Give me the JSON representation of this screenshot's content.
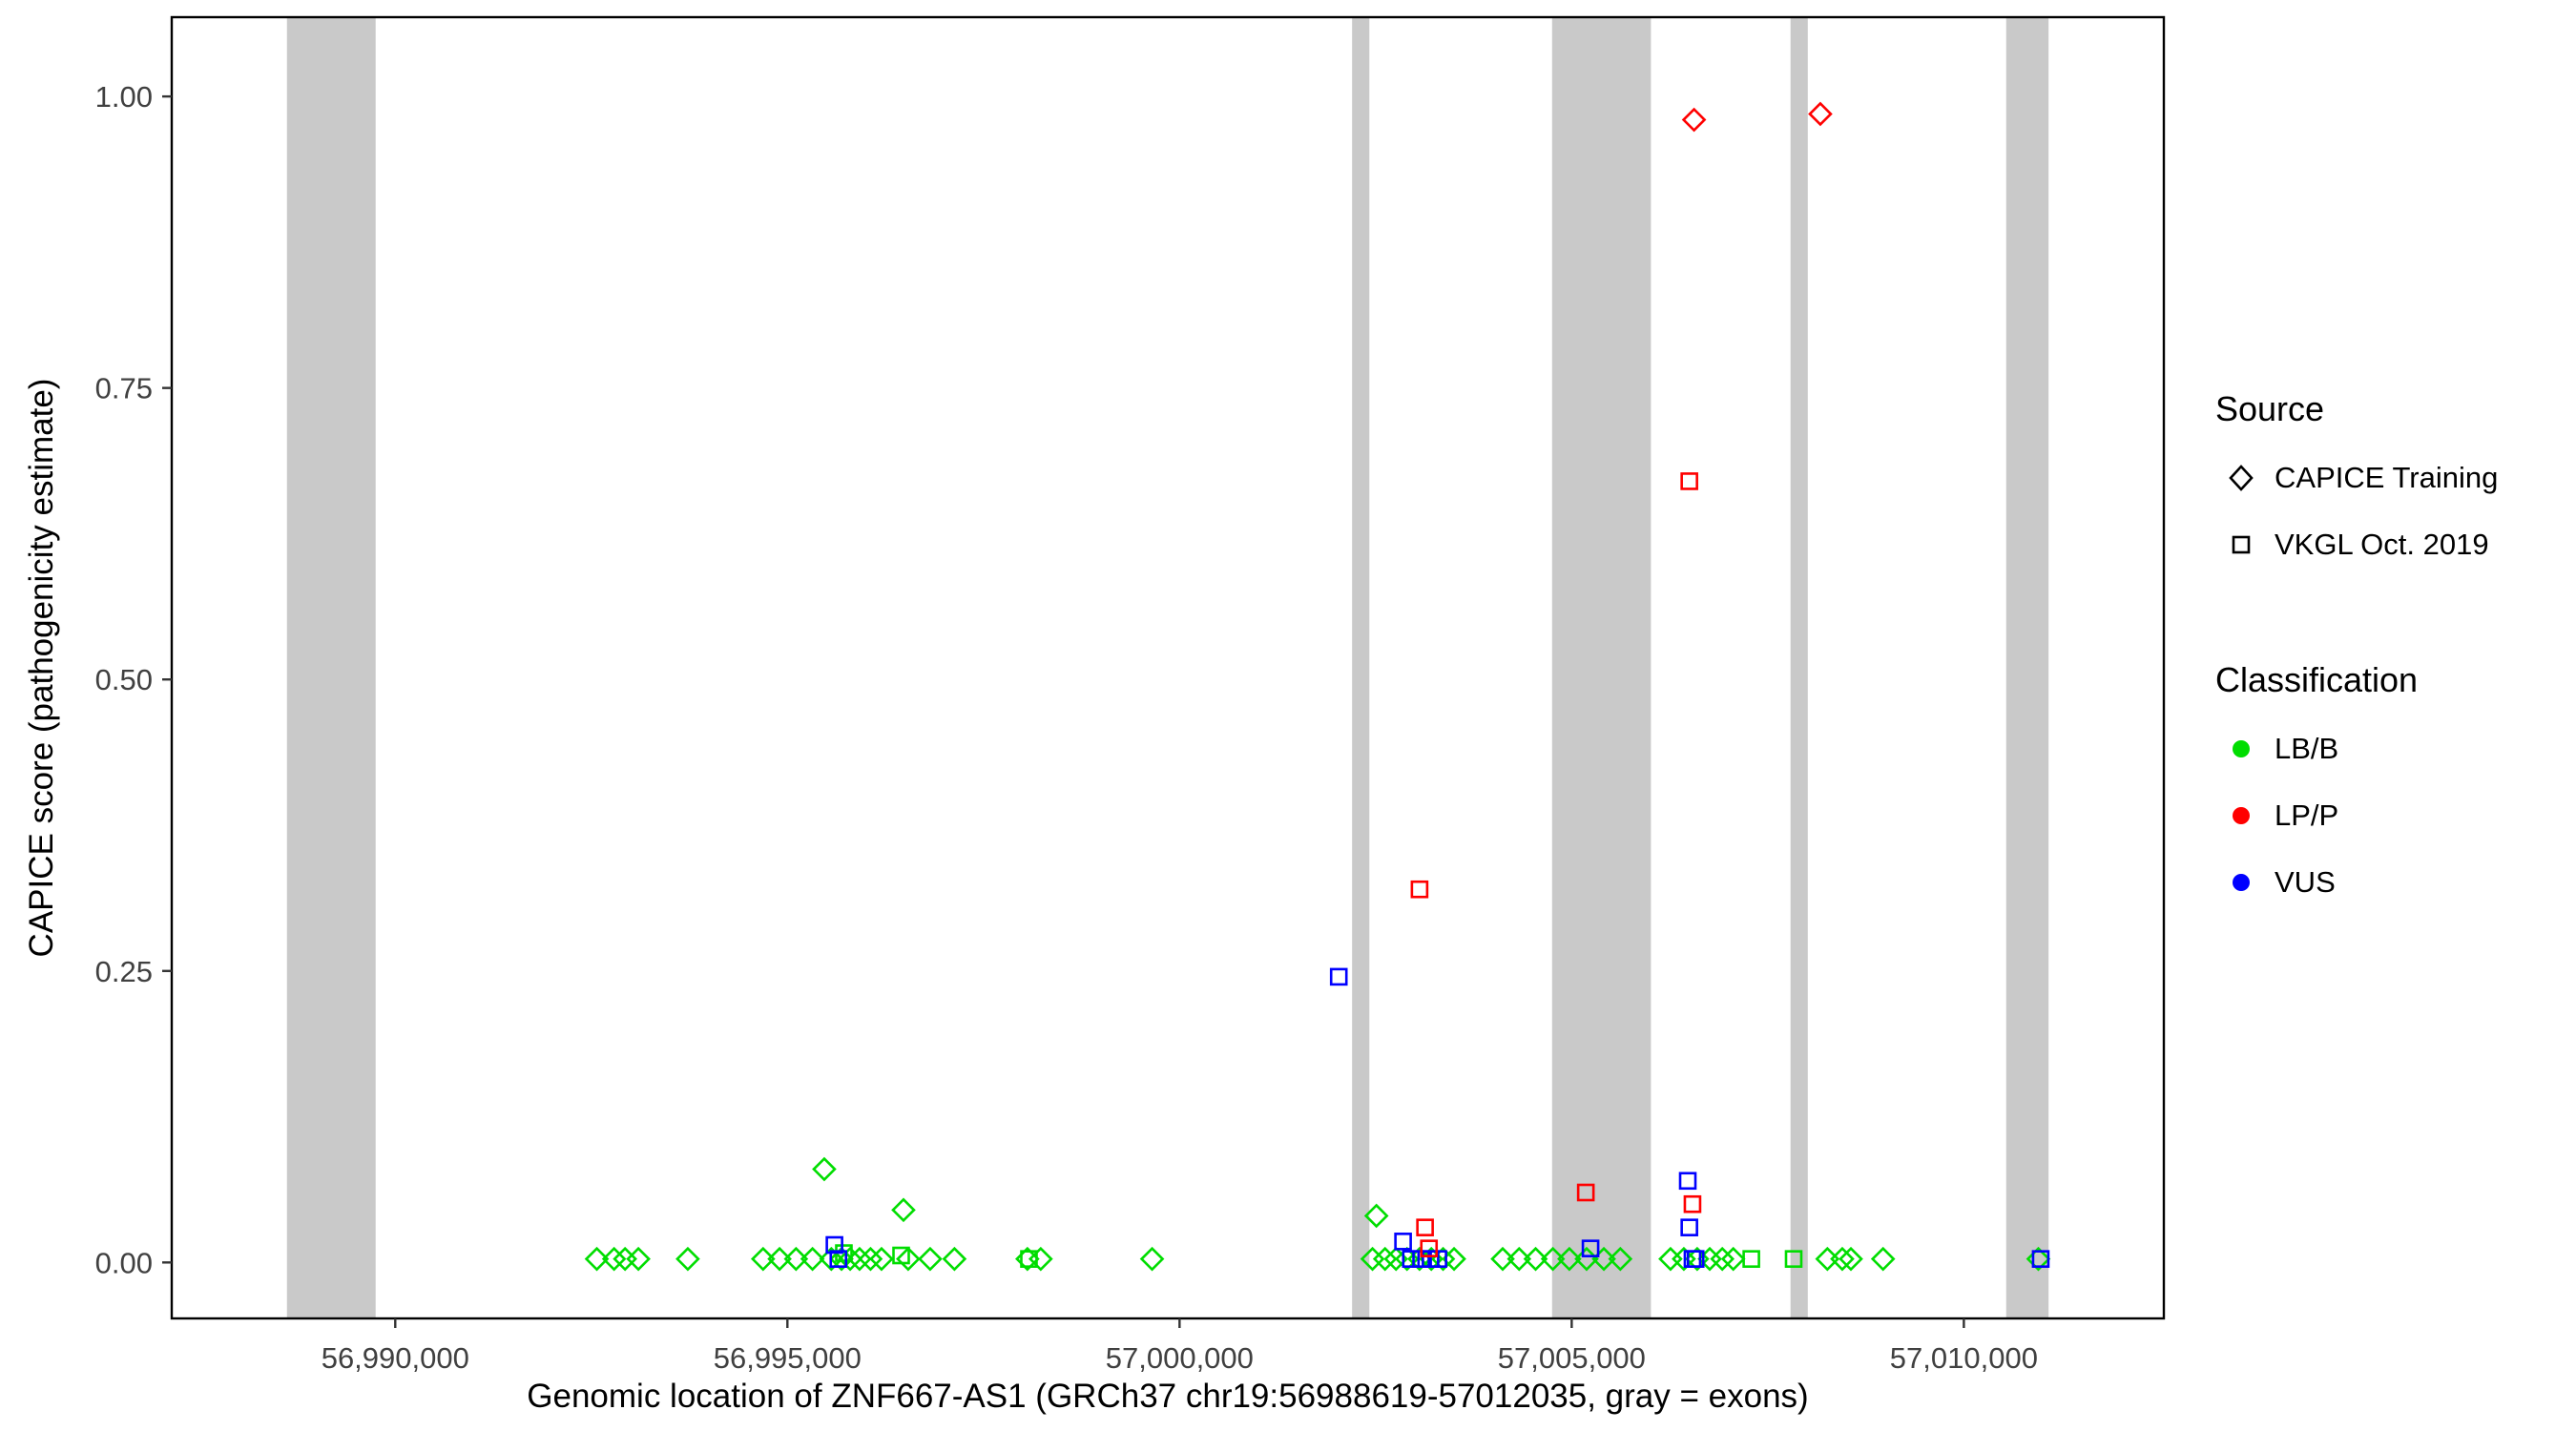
{
  "chart_data": {
    "type": "scatter",
    "title": "",
    "xlabel": "Genomic location of ZNF667-AS1 (GRCh37 chr19:56988619-57012035, gray = exons)",
    "ylabel": "CAPICE score (pathogenicity estimate)",
    "x_domain": [
      56987150,
      57012550
    ],
    "y_domain": [
      -0.048,
      1.068
    ],
    "grid": "off",
    "legend_position": "right",
    "x_ticks": [
      {
        "value": 56990000,
        "label": "56,990,000"
      },
      {
        "value": 56995000,
        "label": "56,995,000"
      },
      {
        "value": 57000000,
        "label": "57,000,000"
      },
      {
        "value": 57005000,
        "label": "57,005,000"
      },
      {
        "value": 57010000,
        "label": "57,010,000"
      }
    ],
    "y_ticks": [
      {
        "value": 0.0,
        "label": "0.00"
      },
      {
        "value": 0.25,
        "label": "0.25"
      },
      {
        "value": 0.5,
        "label": "0.50"
      },
      {
        "value": 0.75,
        "label": "0.75"
      },
      {
        "value": 1.0,
        "label": "1.00"
      }
    ],
    "exon_color": "#C9C9C9",
    "exons": [
      {
        "start": 56988619,
        "end": 56989750
      },
      {
        "start": 57002200,
        "end": 57002420
      },
      {
        "start": 57004750,
        "end": 57006010
      },
      {
        "start": 57007790,
        "end": 57008010
      },
      {
        "start": 57010540,
        "end": 57011080
      }
    ],
    "class_colors": {
      "LB/B": "#00DD00",
      "LP/P": "#FF0000",
      "VUS": "#0000FF"
    },
    "source_shapes": {
      "CAPICE": "diamond",
      "VKGL": "square"
    },
    "source_labels": {
      "CAPICE": "CAPICE Training",
      "VKGL": "VKGL Oct. 2019"
    },
    "points": [
      {
        "x": 56992570,
        "y": 0.003,
        "src": "CAPICE",
        "cls": "LB/B"
      },
      {
        "x": 56992790,
        "y": 0.003,
        "src": "CAPICE",
        "cls": "LB/B"
      },
      {
        "x": 56992930,
        "y": 0.003,
        "src": "CAPICE",
        "cls": "LB/B"
      },
      {
        "x": 56993100,
        "y": 0.003,
        "src": "CAPICE",
        "cls": "LB/B"
      },
      {
        "x": 56993730,
        "y": 0.003,
        "src": "CAPICE",
        "cls": "LB/B"
      },
      {
        "x": 56994690,
        "y": 0.003,
        "src": "CAPICE",
        "cls": "LB/B"
      },
      {
        "x": 56994900,
        "y": 0.003,
        "src": "CAPICE",
        "cls": "LB/B"
      },
      {
        "x": 56995110,
        "y": 0.003,
        "src": "CAPICE",
        "cls": "LB/B"
      },
      {
        "x": 56995320,
        "y": 0.003,
        "src": "CAPICE",
        "cls": "LB/B"
      },
      {
        "x": 56995470,
        "y": 0.08,
        "src": "CAPICE",
        "cls": "LB/B"
      },
      {
        "x": 56995560,
        "y": 0.003,
        "src": "CAPICE",
        "cls": "LB/B"
      },
      {
        "x": 56995690,
        "y": 0.003,
        "src": "CAPICE",
        "cls": "LB/B"
      },
      {
        "x": 56995800,
        "y": 0.003,
        "src": "CAPICE",
        "cls": "LB/B"
      },
      {
        "x": 56995920,
        "y": 0.003,
        "src": "CAPICE",
        "cls": "LB/B"
      },
      {
        "x": 56996060,
        "y": 0.003,
        "src": "CAPICE",
        "cls": "LB/B"
      },
      {
        "x": 56996200,
        "y": 0.003,
        "src": "CAPICE",
        "cls": "LB/B"
      },
      {
        "x": 56996480,
        "y": 0.045,
        "src": "CAPICE",
        "cls": "LB/B"
      },
      {
        "x": 56996540,
        "y": 0.003,
        "src": "CAPICE",
        "cls": "LB/B"
      },
      {
        "x": 56996820,
        "y": 0.003,
        "src": "CAPICE",
        "cls": "LB/B"
      },
      {
        "x": 56997130,
        "y": 0.003,
        "src": "CAPICE",
        "cls": "LB/B"
      },
      {
        "x": 56998060,
        "y": 0.003,
        "src": "CAPICE",
        "cls": "LB/B"
      },
      {
        "x": 56998230,
        "y": 0.003,
        "src": "CAPICE",
        "cls": "LB/B"
      },
      {
        "x": 56999650,
        "y": 0.003,
        "src": "CAPICE",
        "cls": "LB/B"
      },
      {
        "x": 57002460,
        "y": 0.003,
        "src": "CAPICE",
        "cls": "LB/B"
      },
      {
        "x": 57002510,
        "y": 0.04,
        "src": "CAPICE",
        "cls": "LB/B"
      },
      {
        "x": 57002620,
        "y": 0.003,
        "src": "CAPICE",
        "cls": "LB/B"
      },
      {
        "x": 57002760,
        "y": 0.003,
        "src": "CAPICE",
        "cls": "LB/B"
      },
      {
        "x": 57002900,
        "y": 0.003,
        "src": "CAPICE",
        "cls": "LB/B"
      },
      {
        "x": 57003060,
        "y": 0.003,
        "src": "CAPICE",
        "cls": "LB/B"
      },
      {
        "x": 57003210,
        "y": 0.003,
        "src": "CAPICE",
        "cls": "LB/B"
      },
      {
        "x": 57003360,
        "y": 0.003,
        "src": "CAPICE",
        "cls": "LB/B"
      },
      {
        "x": 57003500,
        "y": 0.003,
        "src": "CAPICE",
        "cls": "LB/B"
      },
      {
        "x": 57004120,
        "y": 0.003,
        "src": "CAPICE",
        "cls": "LB/B"
      },
      {
        "x": 57004330,
        "y": 0.003,
        "src": "CAPICE",
        "cls": "LB/B"
      },
      {
        "x": 57004540,
        "y": 0.003,
        "src": "CAPICE",
        "cls": "LB/B"
      },
      {
        "x": 57004760,
        "y": 0.003,
        "src": "CAPICE",
        "cls": "LB/B"
      },
      {
        "x": 57004970,
        "y": 0.003,
        "src": "CAPICE",
        "cls": "LB/B"
      },
      {
        "x": 57005190,
        "y": 0.003,
        "src": "CAPICE",
        "cls": "LB/B"
      },
      {
        "x": 57005410,
        "y": 0.003,
        "src": "CAPICE",
        "cls": "LB/B"
      },
      {
        "x": 57005620,
        "y": 0.003,
        "src": "CAPICE",
        "cls": "LB/B"
      },
      {
        "x": 57006260,
        "y": 0.003,
        "src": "CAPICE",
        "cls": "LB/B"
      },
      {
        "x": 57006430,
        "y": 0.003,
        "src": "CAPICE",
        "cls": "LB/B"
      },
      {
        "x": 57006600,
        "y": 0.003,
        "src": "CAPICE",
        "cls": "LB/B"
      },
      {
        "x": 57006760,
        "y": 0.003,
        "src": "CAPICE",
        "cls": "LB/B"
      },
      {
        "x": 57006920,
        "y": 0.003,
        "src": "CAPICE",
        "cls": "LB/B"
      },
      {
        "x": 57007060,
        "y": 0.003,
        "src": "CAPICE",
        "cls": "LB/B"
      },
      {
        "x": 57008260,
        "y": 0.003,
        "src": "CAPICE",
        "cls": "LB/B"
      },
      {
        "x": 57008450,
        "y": 0.003,
        "src": "CAPICE",
        "cls": "LB/B"
      },
      {
        "x": 57008560,
        "y": 0.003,
        "src": "CAPICE",
        "cls": "LB/B"
      },
      {
        "x": 57008970,
        "y": 0.003,
        "src": "CAPICE",
        "cls": "LB/B"
      },
      {
        "x": 57010950,
        "y": 0.003,
        "src": "CAPICE",
        "cls": "LB/B"
      },
      {
        "x": 57006560,
        "y": 0.98,
        "src": "CAPICE",
        "cls": "LP/P"
      },
      {
        "x": 57008170,
        "y": 0.985,
        "src": "CAPICE",
        "cls": "LP/P"
      },
      {
        "x": 56995720,
        "y": 0.008,
        "src": "VKGL",
        "cls": "LB/B"
      },
      {
        "x": 56996450,
        "y": 0.006,
        "src": "VKGL",
        "cls": "LB/B"
      },
      {
        "x": 56998080,
        "y": 0.003,
        "src": "VKGL",
        "cls": "LB/B"
      },
      {
        "x": 57007290,
        "y": 0.003,
        "src": "VKGL",
        "cls": "LB/B"
      },
      {
        "x": 57007830,
        "y": 0.003,
        "src": "VKGL",
        "cls": "LB/B"
      },
      {
        "x": 56995600,
        "y": 0.015,
        "src": "VKGL",
        "cls": "VUS"
      },
      {
        "x": 56995650,
        "y": 0.003,
        "src": "VKGL",
        "cls": "VUS"
      },
      {
        "x": 57002030,
        "y": 0.245,
        "src": "VKGL",
        "cls": "VUS"
      },
      {
        "x": 57002850,
        "y": 0.018,
        "src": "VKGL",
        "cls": "VUS"
      },
      {
        "x": 57002950,
        "y": 0.003,
        "src": "VKGL",
        "cls": "VUS"
      },
      {
        "x": 57003080,
        "y": 0.003,
        "src": "VKGL",
        "cls": "VUS"
      },
      {
        "x": 57003200,
        "y": 0.003,
        "src": "VKGL",
        "cls": "VUS"
      },
      {
        "x": 57003300,
        "y": 0.003,
        "src": "VKGL",
        "cls": "VUS"
      },
      {
        "x": 57005240,
        "y": 0.012,
        "src": "VKGL",
        "cls": "VUS"
      },
      {
        "x": 57006480,
        "y": 0.07,
        "src": "VKGL",
        "cls": "VUS"
      },
      {
        "x": 57006500,
        "y": 0.03,
        "src": "VKGL",
        "cls": "VUS"
      },
      {
        "x": 57006540,
        "y": 0.003,
        "src": "VKGL",
        "cls": "VUS"
      },
      {
        "x": 57006580,
        "y": 0.003,
        "src": "VKGL",
        "cls": "VUS"
      },
      {
        "x": 57010980,
        "y": 0.003,
        "src": "VKGL",
        "cls": "VUS"
      },
      {
        "x": 57003060,
        "y": 0.32,
        "src": "VKGL",
        "cls": "LP/P"
      },
      {
        "x": 57003130,
        "y": 0.03,
        "src": "VKGL",
        "cls": "LP/P"
      },
      {
        "x": 57003180,
        "y": 0.012,
        "src": "VKGL",
        "cls": "LP/P"
      },
      {
        "x": 57005180,
        "y": 0.06,
        "src": "VKGL",
        "cls": "LP/P"
      },
      {
        "x": 57006500,
        "y": 0.67,
        "src": "VKGL",
        "cls": "LP/P"
      },
      {
        "x": 57006540,
        "y": 0.05,
        "src": "VKGL",
        "cls": "LP/P"
      }
    ]
  },
  "legend": {
    "source": {
      "title": "Source",
      "items": [
        {
          "label": "CAPICE Training",
          "shape": "diamond"
        },
        {
          "label": "VKGL Oct. 2019",
          "shape": "square"
        }
      ]
    },
    "classification": {
      "title": "Classification",
      "items": [
        {
          "label": "LB/B",
          "color": "#00DD00"
        },
        {
          "label": "LP/P",
          "color": "#FF0000"
        },
        {
          "label": "VUS",
          "color": "#0000FF"
        }
      ]
    }
  }
}
